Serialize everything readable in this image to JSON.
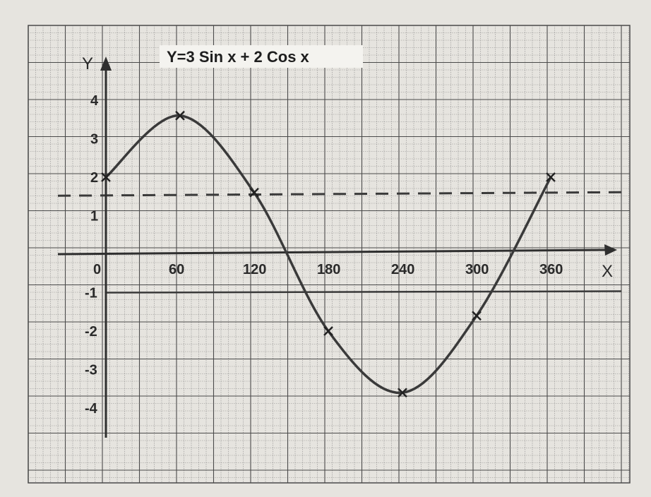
{
  "chart_data": {
    "type": "line",
    "title": "Y=3 Sin x + 2 Cos x",
    "xlabel": "X",
    "ylabel": "Y",
    "xlim": [
      0,
      360
    ],
    "ylim": [
      -4,
      4
    ],
    "x_ticks": [
      0,
      60,
      120,
      180,
      240,
      300,
      360
    ],
    "y_ticks": [
      4,
      3,
      2,
      1,
      -1,
      -2,
      -3,
      -4
    ],
    "x_tick_labels": [
      "0",
      "60",
      "120",
      "180",
      "240",
      "300",
      "360"
    ],
    "y_tick_labels": [
      "4",
      "3",
      "2",
      "1",
      "-1",
      "-2",
      "-3",
      "-4"
    ],
    "grid": true,
    "series": [
      {
        "x": [
          0,
          60,
          120,
          180,
          240,
          300,
          360
        ],
        "values": [
          2.0,
          3.6,
          1.6,
          -2.0,
          -3.6,
          -1.6,
          2.0
        ],
        "color": "#3a3a3a",
        "markers": true
      }
    ],
    "reference_lines": [
      {
        "axis": "y",
        "value": 1.5,
        "style": "dashed",
        "color": "#3a3a3a"
      },
      {
        "axis": "y",
        "value": -1.0,
        "style": "solid",
        "color": "#3a3a3a"
      }
    ]
  },
  "colors": {
    "paper": "#e6e4df",
    "grid_fine": "#8c8c8c",
    "grid_major": "#4a4a4a",
    "ink": "#2f2f2f"
  }
}
